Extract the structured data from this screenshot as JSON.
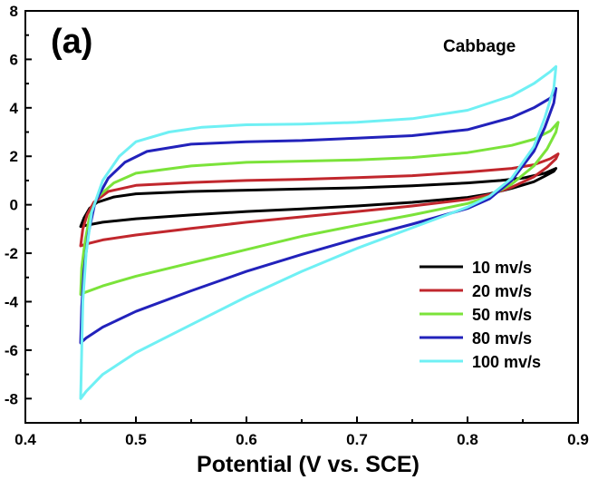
{
  "chart_data": {
    "type": "line",
    "panel_label": "(a)",
    "annotation": "Cabbage",
    "xlabel": "Potential (V vs. SCE)",
    "ylabel": "",
    "xlim": [
      0.4,
      0.9
    ],
    "ylim": [
      -9,
      8
    ],
    "x_ticks": [
      0.4,
      0.5,
      0.6,
      0.7,
      0.8,
      0.9
    ],
    "x_tick_labels": [
      "0.4",
      "0.5",
      "0.6",
      "0.7",
      "0.8",
      "0.9"
    ],
    "y_ticks": [
      -8,
      -6,
      -4,
      -2,
      0,
      2,
      4,
      6,
      8
    ],
    "y_tick_labels": [
      "-8",
      "-6",
      "-4",
      "-2",
      "0",
      "2",
      "4",
      "6",
      "8"
    ],
    "grid": false,
    "legend_position": "bottom-right",
    "series": [
      {
        "name": "10 mv/s",
        "color": "#000000",
        "points": [
          [
            0.45,
            -0.9
          ],
          [
            0.453,
            -0.55
          ],
          [
            0.458,
            -0.15
          ],
          [
            0.465,
            0.1
          ],
          [
            0.48,
            0.32
          ],
          [
            0.5,
            0.45
          ],
          [
            0.55,
            0.55
          ],
          [
            0.6,
            0.6
          ],
          [
            0.65,
            0.65
          ],
          [
            0.7,
            0.7
          ],
          [
            0.75,
            0.78
          ],
          [
            0.8,
            0.9
          ],
          [
            0.83,
            1.0
          ],
          [
            0.85,
            1.1
          ],
          [
            0.87,
            1.3
          ],
          [
            0.88,
            1.5
          ],
          [
            0.878,
            1.38
          ],
          [
            0.87,
            1.18
          ],
          [
            0.86,
            0.95
          ],
          [
            0.84,
            0.68
          ],
          [
            0.82,
            0.45
          ],
          [
            0.8,
            0.3
          ],
          [
            0.75,
            0.1
          ],
          [
            0.7,
            -0.05
          ],
          [
            0.65,
            -0.17
          ],
          [
            0.6,
            -0.28
          ],
          [
            0.55,
            -0.42
          ],
          [
            0.5,
            -0.58
          ],
          [
            0.47,
            -0.72
          ],
          [
            0.455,
            -0.85
          ],
          [
            0.45,
            -0.9
          ]
        ]
      },
      {
        "name": "20 mv/s",
        "color": "#c1272d",
        "points": [
          [
            0.45,
            -1.7
          ],
          [
            0.452,
            -1.0
          ],
          [
            0.456,
            -0.4
          ],
          [
            0.462,
            0.1
          ],
          [
            0.475,
            0.55
          ],
          [
            0.5,
            0.8
          ],
          [
            0.55,
            0.92
          ],
          [
            0.6,
            1.0
          ],
          [
            0.65,
            1.05
          ],
          [
            0.7,
            1.12
          ],
          [
            0.75,
            1.2
          ],
          [
            0.8,
            1.35
          ],
          [
            0.84,
            1.5
          ],
          [
            0.86,
            1.65
          ],
          [
            0.875,
            1.9
          ],
          [
            0.882,
            2.1
          ],
          [
            0.88,
            1.9
          ],
          [
            0.872,
            1.55
          ],
          [
            0.86,
            1.15
          ],
          [
            0.84,
            0.72
          ],
          [
            0.82,
            0.42
          ],
          [
            0.8,
            0.22
          ],
          [
            0.75,
            -0.05
          ],
          [
            0.7,
            -0.28
          ],
          [
            0.65,
            -0.5
          ],
          [
            0.6,
            -0.72
          ],
          [
            0.55,
            -0.98
          ],
          [
            0.5,
            -1.25
          ],
          [
            0.47,
            -1.45
          ],
          [
            0.455,
            -1.62
          ],
          [
            0.45,
            -1.7
          ]
        ]
      },
      {
        "name": "50 mv/s",
        "color": "#7be33a",
        "points": [
          [
            0.45,
            -3.7
          ],
          [
            0.451,
            -2.6
          ],
          [
            0.454,
            -1.5
          ],
          [
            0.458,
            -0.5
          ],
          [
            0.465,
            0.3
          ],
          [
            0.48,
            0.9
          ],
          [
            0.5,
            1.3
          ],
          [
            0.55,
            1.6
          ],
          [
            0.6,
            1.75
          ],
          [
            0.65,
            1.8
          ],
          [
            0.7,
            1.85
          ],
          [
            0.75,
            1.95
          ],
          [
            0.8,
            2.15
          ],
          [
            0.84,
            2.45
          ],
          [
            0.86,
            2.7
          ],
          [
            0.875,
            3.05
          ],
          [
            0.882,
            3.4
          ],
          [
            0.88,
            3.0
          ],
          [
            0.872,
            2.3
          ],
          [
            0.86,
            1.6
          ],
          [
            0.84,
            0.85
          ],
          [
            0.82,
            0.35
          ],
          [
            0.8,
            0.05
          ],
          [
            0.75,
            -0.42
          ],
          [
            0.7,
            -0.85
          ],
          [
            0.65,
            -1.3
          ],
          [
            0.6,
            -1.85
          ],
          [
            0.55,
            -2.4
          ],
          [
            0.5,
            -2.95
          ],
          [
            0.47,
            -3.35
          ],
          [
            0.455,
            -3.6
          ],
          [
            0.45,
            -3.7
          ]
        ]
      },
      {
        "name": "80 mv/s",
        "color": "#2222bb",
        "points": [
          [
            0.45,
            -5.7
          ],
          [
            0.451,
            -4.2
          ],
          [
            0.453,
            -2.7
          ],
          [
            0.457,
            -1.2
          ],
          [
            0.463,
            0.1
          ],
          [
            0.475,
            1.1
          ],
          [
            0.49,
            1.75
          ],
          [
            0.51,
            2.2
          ],
          [
            0.55,
            2.5
          ],
          [
            0.6,
            2.6
          ],
          [
            0.65,
            2.65
          ],
          [
            0.7,
            2.75
          ],
          [
            0.75,
            2.85
          ],
          [
            0.8,
            3.1
          ],
          [
            0.84,
            3.6
          ],
          [
            0.86,
            4.0
          ],
          [
            0.875,
            4.4
          ],
          [
            0.88,
            4.8
          ],
          [
            0.878,
            4.2
          ],
          [
            0.87,
            3.2
          ],
          [
            0.86,
            2.2
          ],
          [
            0.84,
            1.0
          ],
          [
            0.82,
            0.25
          ],
          [
            0.8,
            -0.15
          ],
          [
            0.75,
            -0.8
          ],
          [
            0.7,
            -1.4
          ],
          [
            0.65,
            -2.05
          ],
          [
            0.6,
            -2.75
          ],
          [
            0.55,
            -3.55
          ],
          [
            0.5,
            -4.4
          ],
          [
            0.47,
            -5.05
          ],
          [
            0.455,
            -5.5
          ],
          [
            0.45,
            -5.7
          ]
        ]
      },
      {
        "name": "100 mv/s",
        "color": "#6ff0f4",
        "points": [
          [
            0.45,
            -8.0
          ],
          [
            0.451,
            -6.0
          ],
          [
            0.452,
            -4.0
          ],
          [
            0.455,
            -2.0
          ],
          [
            0.46,
            -0.3
          ],
          [
            0.47,
            1.0
          ],
          [
            0.485,
            2.0
          ],
          [
            0.5,
            2.6
          ],
          [
            0.53,
            3.0
          ],
          [
            0.56,
            3.2
          ],
          [
            0.6,
            3.3
          ],
          [
            0.65,
            3.33
          ],
          [
            0.7,
            3.4
          ],
          [
            0.75,
            3.55
          ],
          [
            0.8,
            3.9
          ],
          [
            0.84,
            4.5
          ],
          [
            0.86,
            5.0
          ],
          [
            0.875,
            5.5
          ],
          [
            0.88,
            5.7
          ],
          [
            0.878,
            4.8
          ],
          [
            0.87,
            3.6
          ],
          [
            0.86,
            2.4
          ],
          [
            0.84,
            1.1
          ],
          [
            0.82,
            0.35
          ],
          [
            0.8,
            -0.1
          ],
          [
            0.75,
            -0.95
          ],
          [
            0.7,
            -1.8
          ],
          [
            0.65,
            -2.75
          ],
          [
            0.6,
            -3.8
          ],
          [
            0.55,
            -4.95
          ],
          [
            0.5,
            -6.1
          ],
          [
            0.47,
            -7.0
          ],
          [
            0.455,
            -7.7
          ],
          [
            0.45,
            -8.0
          ]
        ]
      }
    ]
  }
}
